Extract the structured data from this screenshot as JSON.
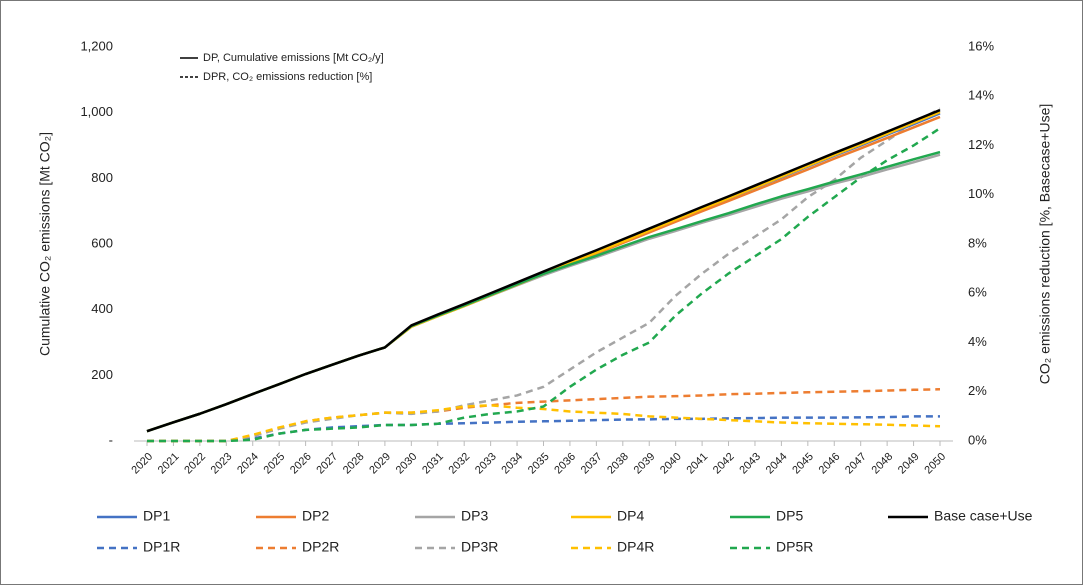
{
  "chart_data": {
    "type": "line",
    "y_label": "Cumulative CO₂ emissions  [Mt CO₂]",
    "y2_label": "CO₂ emissions reduction  [%, Basecase+Use]",
    "annotations": [
      "DP, Cumulative emissions [Mt CO₂/y]",
      "DPR, CO₂ emissions reduction [%]"
    ],
    "categories": [
      "2020",
      "2021",
      "2022",
      "2023",
      "2024",
      "2025",
      "2026",
      "2027",
      "2028",
      "2029",
      "2030",
      "2031",
      "2032",
      "2033",
      "2034",
      "2035",
      "2036",
      "2037",
      "2038",
      "2039",
      "2040",
      "2041",
      "2042",
      "2043",
      "2044",
      "2045",
      "2046",
      "2047",
      "2048",
      "2049",
      "2050"
    ],
    "ylim": [
      0,
      1200
    ],
    "yticks": [
      {
        "value": 0,
        "label": "-"
      },
      200,
      400,
      600,
      800,
      {
        "value": 1000,
        "label": "1,000"
      },
      {
        "value": 1200,
        "label": "1,200"
      }
    ],
    "y2lim": [
      0,
      16
    ],
    "y2ticks": [
      {
        "value": 0,
        "label": "0%"
      },
      {
        "value": 2,
        "label": "2%"
      },
      {
        "value": 4,
        "label": "4%"
      },
      {
        "value": 6,
        "label": "6%"
      },
      {
        "value": 8,
        "label": "8%"
      },
      {
        "value": 10,
        "label": "10%"
      },
      {
        "value": 12,
        "label": "12%"
      },
      {
        "value": 14,
        "label": "14%"
      },
      {
        "value": 16,
        "label": "16%"
      }
    ],
    "grid": false,
    "series": [
      {
        "name": "DP1",
        "color": "#4472c4",
        "line_style": "solid",
        "values": [
          30,
          57,
          83,
          112,
          143,
          173,
          204,
          232,
          260,
          285,
          350,
          382,
          414,
          447,
          479,
          512,
          544,
          576,
          609,
          641,
          674,
          707,
          738,
          771,
          803,
          836,
          869,
          900,
          933,
          965,
          998
        ]
      },
      {
        "name": "DP2",
        "color": "#ed7d31",
        "line_style": "solid",
        "values": [
          30,
          57,
          83,
          112,
          143,
          173,
          204,
          232,
          260,
          285,
          348,
          380,
          411,
          443,
          476,
          508,
          540,
          571,
          603,
          635,
          668,
          700,
          731,
          763,
          795,
          827,
          860,
          891,
          923,
          955,
          987
        ]
      },
      {
        "name": "DP3",
        "color": "#a5a5a5",
        "line_style": "solid",
        "values": [
          30,
          57,
          83,
          112,
          143,
          173,
          204,
          232,
          260,
          285,
          348,
          380,
          411,
          443,
          474,
          505,
          533,
          560,
          588,
          616,
          640,
          665,
          688,
          713,
          738,
          760,
          784,
          804,
          827,
          849,
          872
        ]
      },
      {
        "name": "DP4",
        "color": "#ffc000",
        "line_style": "solid",
        "values": [
          30,
          57,
          83,
          112,
          143,
          173,
          204,
          232,
          260,
          285,
          348,
          380,
          411,
          444,
          476,
          509,
          542,
          574,
          607,
          641,
          674,
          707,
          739,
          772,
          805,
          838,
          871,
          903,
          936,
          969,
          1002
        ]
      },
      {
        "name": "DP5",
        "color": "#21a84f",
        "line_style": "solid",
        "values": [
          30,
          57,
          83,
          112,
          143,
          173,
          204,
          232,
          260,
          285,
          350,
          382,
          413,
          445,
          477,
          509,
          537,
          564,
          593,
          621,
          645,
          670,
          694,
          720,
          745,
          767,
          790,
          812,
          835,
          858,
          880
        ]
      },
      {
        "name": "Base case+Use",
        "color": "#000000",
        "line_style": "solid",
        "values": [
          30,
          57,
          83,
          112,
          143,
          173,
          204,
          232,
          260,
          285,
          352,
          385,
          417,
          450,
          483,
          516,
          549,
          581,
          614,
          647,
          680,
          713,
          745,
          778,
          811,
          844,
          877,
          909,
          942,
          975,
          1008
        ]
      },
      {
        "name": "DP1R",
        "color": "#4472c4",
        "line_style": "dashed",
        "axis": "y2",
        "values": [
          0,
          0,
          0,
          0,
          0.1,
          0.3,
          0.45,
          0.55,
          0.6,
          0.65,
          0.65,
          0.7,
          0.72,
          0.75,
          0.78,
          0.8,
          0.82,
          0.85,
          0.87,
          0.88,
          0.9,
          0.9,
          0.92,
          0.93,
          0.95,
          0.95,
          0.95,
          0.96,
          0.97,
          1.0,
          1.0
        ]
      },
      {
        "name": "DP2R",
        "color": "#ed7d31",
        "line_style": "dashed",
        "axis": "y2",
        "values": [
          0,
          0,
          0,
          0,
          0.2,
          0.5,
          0.8,
          0.95,
          1.05,
          1.15,
          1.15,
          1.2,
          1.35,
          1.45,
          1.55,
          1.6,
          1.65,
          1.7,
          1.75,
          1.8,
          1.82,
          1.85,
          1.9,
          1.92,
          1.95,
          1.98,
          2.0,
          2.02,
          2.05,
          2.08,
          2.1
        ]
      },
      {
        "name": "DP3R",
        "color": "#a5a5a5",
        "line_style": "dashed",
        "axis": "y2",
        "values": [
          0,
          0,
          0,
          0,
          0.2,
          0.5,
          0.75,
          0.9,
          1.05,
          1.15,
          1.1,
          1.2,
          1.45,
          1.65,
          1.85,
          2.2,
          2.9,
          3.6,
          4.2,
          4.8,
          5.9,
          6.8,
          7.6,
          8.3,
          9.0,
          9.9,
          10.6,
          11.5,
          12.2,
          12.9,
          13.5
        ]
      },
      {
        "name": "DP4R",
        "color": "#ffc000",
        "line_style": "dashed",
        "axis": "y2",
        "values": [
          0,
          0,
          0,
          0,
          0.25,
          0.55,
          0.8,
          0.95,
          1.05,
          1.15,
          1.15,
          1.25,
          1.4,
          1.45,
          1.35,
          1.3,
          1.2,
          1.15,
          1.1,
          1.0,
          0.95,
          0.9,
          0.85,
          0.8,
          0.75,
          0.72,
          0.7,
          0.68,
          0.66,
          0.63,
          0.6
        ]
      },
      {
        "name": "DP5R",
        "color": "#21a84f",
        "line_style": "dashed",
        "axis": "y2",
        "values": [
          0,
          0,
          0,
          0,
          0.05,
          0.3,
          0.45,
          0.5,
          0.55,
          0.65,
          0.65,
          0.7,
          0.95,
          1.1,
          1.2,
          1.4,
          2.2,
          2.9,
          3.5,
          4.0,
          5.1,
          6.0,
          6.8,
          7.5,
          8.2,
          9.1,
          9.9,
          10.7,
          11.4,
          12.0,
          12.7
        ]
      }
    ]
  }
}
